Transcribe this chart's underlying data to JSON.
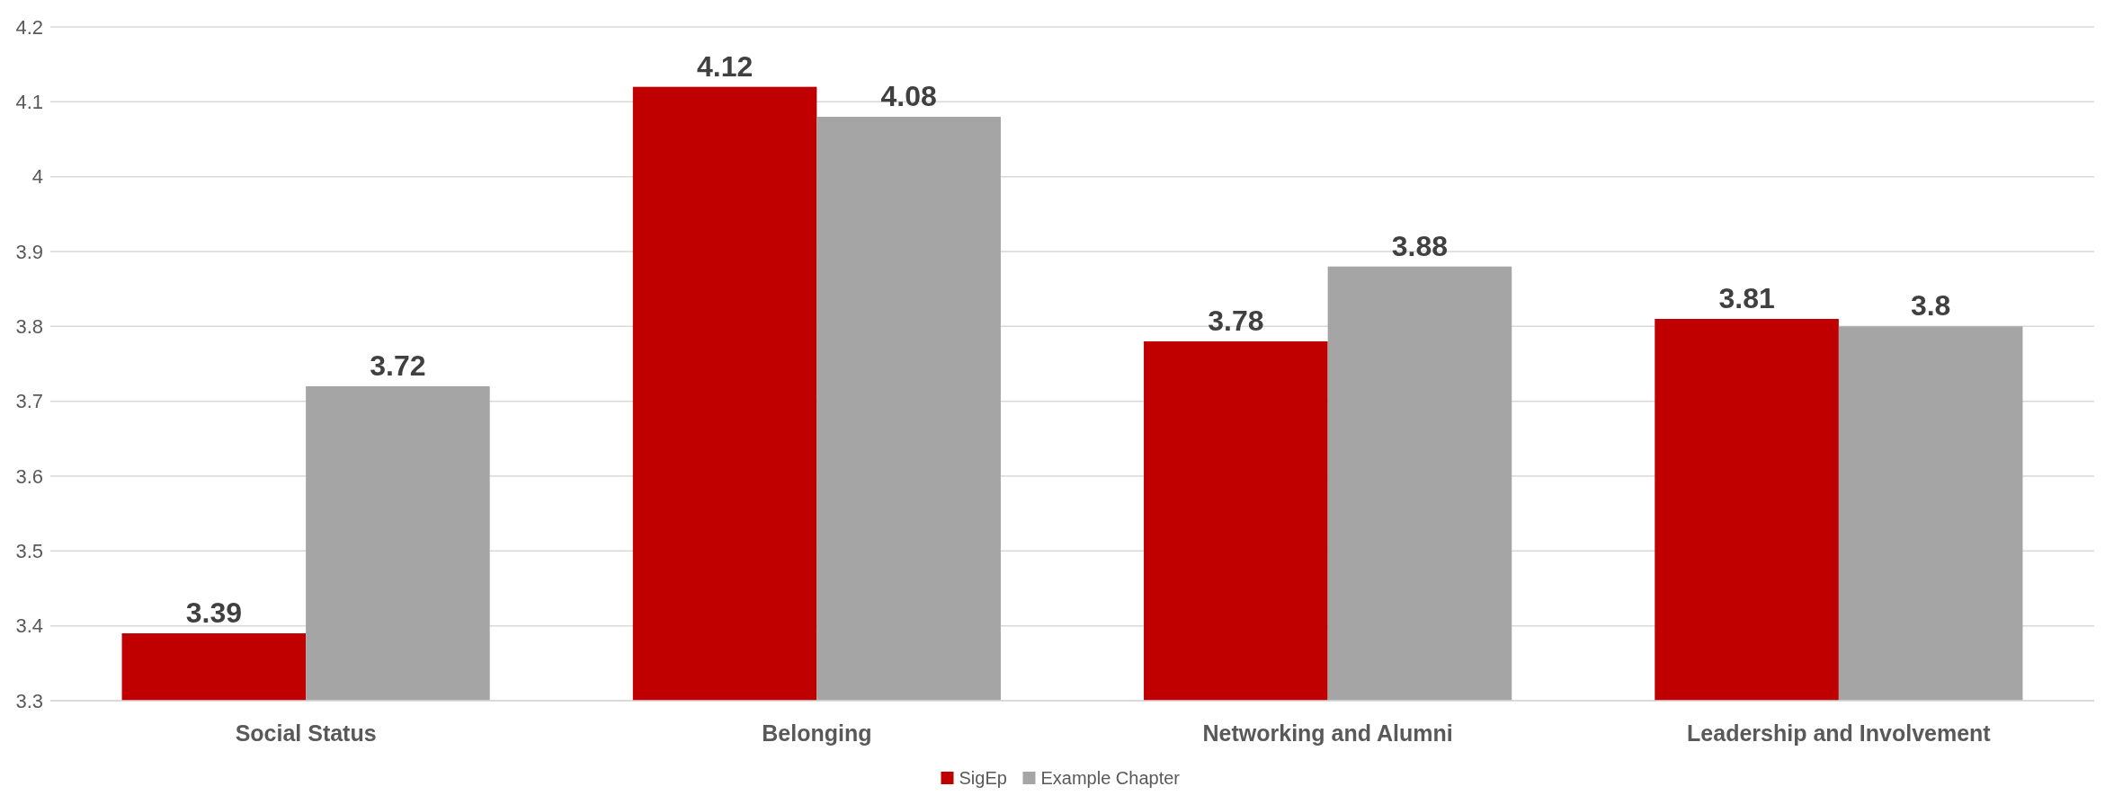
{
  "chart_data": {
    "type": "bar",
    "categories": [
      "Social Status",
      "Belonging",
      "Networking and Alumni",
      "Leadership and Involvement"
    ],
    "series": [
      {
        "name": "SigEp",
        "color": "#c00000",
        "values": [
          3.39,
          4.12,
          3.78,
          3.81
        ]
      },
      {
        "name": "Example Chapter",
        "color": "#a5a5a5",
        "values": [
          3.72,
          4.08,
          3.88,
          3.8
        ]
      }
    ],
    "ylim": [
      3.3,
      4.2
    ],
    "yticks": [
      3.3,
      3.4,
      3.5,
      3.6,
      3.7,
      3.8,
      3.9,
      4,
      4.1,
      4.2
    ],
    "grid": "y",
    "legend": "bottom",
    "data_labels": true
  }
}
